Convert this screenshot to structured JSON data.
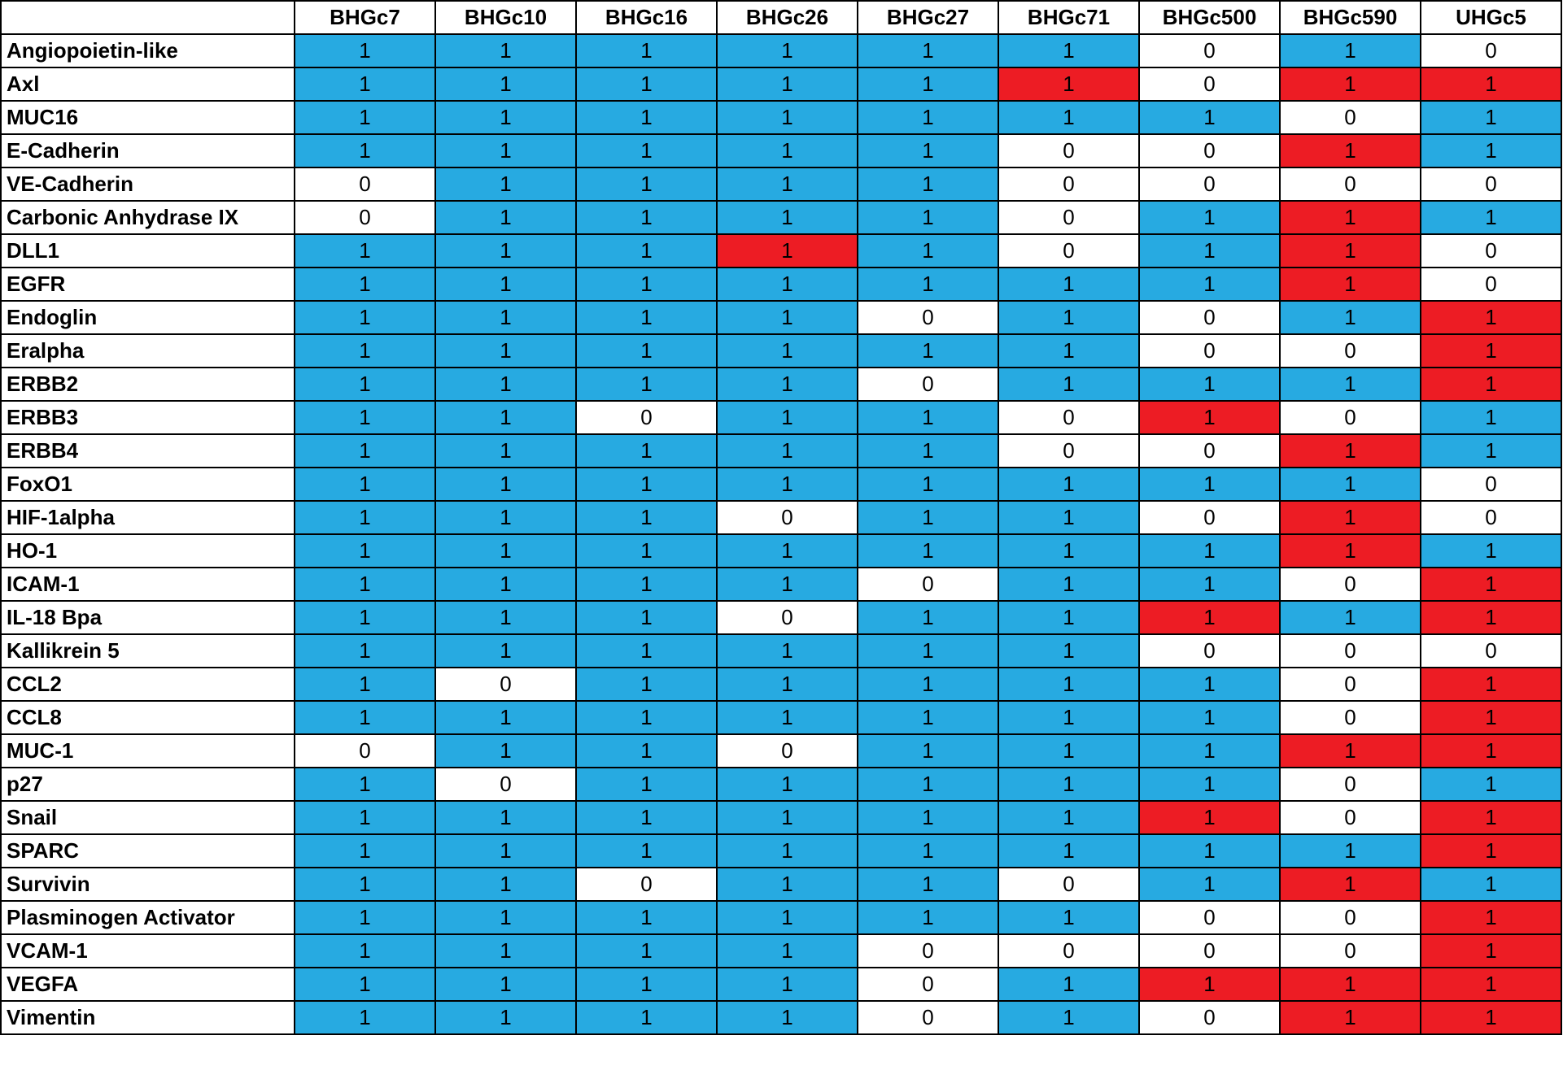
{
  "chart_data": {
    "type": "table",
    "columns": [
      "BHGc7",
      "BHGc10",
      "BHGc16",
      "BHGc26",
      "BHGc27",
      "BHGc71",
      "BHGc500",
      "BHGc590",
      "UHGc5"
    ],
    "colors": {
      "blue": "#27aae1",
      "red": "#ed1c24",
      "white": "#ffffff"
    },
    "rows": [
      {
        "label": "Angiopoietin-like",
        "values": [
          1,
          1,
          1,
          1,
          1,
          1,
          0,
          1,
          0
        ],
        "colors": [
          "blue",
          "blue",
          "blue",
          "blue",
          "blue",
          "blue",
          "white",
          "blue",
          "white"
        ]
      },
      {
        "label": "Axl",
        "values": [
          1,
          1,
          1,
          1,
          1,
          1,
          0,
          1,
          1
        ],
        "colors": [
          "blue",
          "blue",
          "blue",
          "blue",
          "blue",
          "red",
          "white",
          "red",
          "red"
        ]
      },
      {
        "label": "MUC16",
        "values": [
          1,
          1,
          1,
          1,
          1,
          1,
          1,
          0,
          1
        ],
        "colors": [
          "blue",
          "blue",
          "blue",
          "blue",
          "blue",
          "blue",
          "blue",
          "white",
          "blue"
        ]
      },
      {
        "label": "E-Cadherin",
        "values": [
          1,
          1,
          1,
          1,
          1,
          0,
          0,
          1,
          1
        ],
        "colors": [
          "blue",
          "blue",
          "blue",
          "blue",
          "blue",
          "white",
          "white",
          "red",
          "blue"
        ]
      },
      {
        "label": "VE-Cadherin",
        "values": [
          0,
          1,
          1,
          1,
          1,
          0,
          0,
          0,
          0
        ],
        "colors": [
          "white",
          "blue",
          "blue",
          "blue",
          "blue",
          "white",
          "white",
          "white",
          "white"
        ]
      },
      {
        "label": "Carbonic  Anhydrase IX",
        "values": [
          0,
          1,
          1,
          1,
          1,
          0,
          1,
          1,
          1
        ],
        "colors": [
          "white",
          "blue",
          "blue",
          "blue",
          "blue",
          "white",
          "blue",
          "red",
          "blue"
        ]
      },
      {
        "label": "DLL1",
        "values": [
          1,
          1,
          1,
          1,
          1,
          0,
          1,
          1,
          0
        ],
        "colors": [
          "blue",
          "blue",
          "blue",
          "red",
          "blue",
          "white",
          "blue",
          "red",
          "white"
        ]
      },
      {
        "label": "EGFR",
        "values": [
          1,
          1,
          1,
          1,
          1,
          1,
          1,
          1,
          0
        ],
        "colors": [
          "blue",
          "blue",
          "blue",
          "blue",
          "blue",
          "blue",
          "blue",
          "red",
          "white"
        ]
      },
      {
        "label": "Endoglin",
        "values": [
          1,
          1,
          1,
          1,
          0,
          1,
          0,
          1,
          1
        ],
        "colors": [
          "blue",
          "blue",
          "blue",
          "blue",
          "white",
          "blue",
          "white",
          "blue",
          "red"
        ]
      },
      {
        "label": "Eralpha",
        "values": [
          1,
          1,
          1,
          1,
          1,
          1,
          0,
          0,
          1
        ],
        "colors": [
          "blue",
          "blue",
          "blue",
          "blue",
          "blue",
          "blue",
          "white",
          "white",
          "red"
        ]
      },
      {
        "label": "ERBB2",
        "values": [
          1,
          1,
          1,
          1,
          0,
          1,
          1,
          1,
          1
        ],
        "colors": [
          "blue",
          "blue",
          "blue",
          "blue",
          "white",
          "blue",
          "blue",
          "blue",
          "red"
        ]
      },
      {
        "label": "ERBB3",
        "values": [
          1,
          1,
          0,
          1,
          1,
          0,
          1,
          0,
          1
        ],
        "colors": [
          "blue",
          "blue",
          "white",
          "blue",
          "blue",
          "white",
          "red",
          "white",
          "blue"
        ]
      },
      {
        "label": "ERBB4",
        "values": [
          1,
          1,
          1,
          1,
          1,
          0,
          0,
          1,
          1
        ],
        "colors": [
          "blue",
          "blue",
          "blue",
          "blue",
          "blue",
          "white",
          "white",
          "red",
          "blue"
        ]
      },
      {
        "label": "FoxO1",
        "values": [
          1,
          1,
          1,
          1,
          1,
          1,
          1,
          1,
          0
        ],
        "colors": [
          "blue",
          "blue",
          "blue",
          "blue",
          "blue",
          "blue",
          "blue",
          "blue",
          "white"
        ]
      },
      {
        "label": "HIF-1alpha",
        "values": [
          1,
          1,
          1,
          0,
          1,
          1,
          0,
          1,
          0
        ],
        "colors": [
          "blue",
          "blue",
          "blue",
          "white",
          "blue",
          "blue",
          "white",
          "red",
          "white"
        ]
      },
      {
        "label": "HO-1",
        "values": [
          1,
          1,
          1,
          1,
          1,
          1,
          1,
          1,
          1
        ],
        "colors": [
          "blue",
          "blue",
          "blue",
          "blue",
          "blue",
          "blue",
          "blue",
          "red",
          "blue"
        ]
      },
      {
        "label": "ICAM-1",
        "values": [
          1,
          1,
          1,
          1,
          0,
          1,
          1,
          0,
          1
        ],
        "colors": [
          "blue",
          "blue",
          "blue",
          "blue",
          "white",
          "blue",
          "blue",
          "white",
          "red"
        ]
      },
      {
        "label": "IL-18 Bpa",
        "values": [
          1,
          1,
          1,
          0,
          1,
          1,
          1,
          1,
          1
        ],
        "colors": [
          "blue",
          "blue",
          "blue",
          "white",
          "blue",
          "blue",
          "red",
          "blue",
          "red"
        ]
      },
      {
        "label": "Kallikrein 5",
        "values": [
          1,
          1,
          1,
          1,
          1,
          1,
          0,
          0,
          0
        ],
        "colors": [
          "blue",
          "blue",
          "blue",
          "blue",
          "blue",
          "blue",
          "white",
          "white",
          "white"
        ]
      },
      {
        "label": "CCL2",
        "values": [
          1,
          0,
          1,
          1,
          1,
          1,
          1,
          0,
          1
        ],
        "colors": [
          "blue",
          "white",
          "blue",
          "blue",
          "blue",
          "blue",
          "blue",
          "white",
          "red"
        ]
      },
      {
        "label": "CCL8",
        "values": [
          1,
          1,
          1,
          1,
          1,
          1,
          1,
          0,
          1
        ],
        "colors": [
          "blue",
          "blue",
          "blue",
          "blue",
          "blue",
          "blue",
          "blue",
          "white",
          "red"
        ]
      },
      {
        "label": "MUC-1",
        "values": [
          0,
          1,
          1,
          0,
          1,
          1,
          1,
          1,
          1
        ],
        "colors": [
          "white",
          "blue",
          "blue",
          "white",
          "blue",
          "blue",
          "blue",
          "red",
          "red"
        ]
      },
      {
        "label": "p27",
        "values": [
          1,
          0,
          1,
          1,
          1,
          1,
          1,
          0,
          1
        ],
        "colors": [
          "blue",
          "white",
          "blue",
          "blue",
          "blue",
          "blue",
          "blue",
          "white",
          "blue"
        ]
      },
      {
        "label": "Snail",
        "values": [
          1,
          1,
          1,
          1,
          1,
          1,
          1,
          0,
          1
        ],
        "colors": [
          "blue",
          "blue",
          "blue",
          "blue",
          "blue",
          "blue",
          "red",
          "white",
          "red"
        ]
      },
      {
        "label": "SPARC",
        "values": [
          1,
          1,
          1,
          1,
          1,
          1,
          1,
          1,
          1
        ],
        "colors": [
          "blue",
          "blue",
          "blue",
          "blue",
          "blue",
          "blue",
          "blue",
          "blue",
          "red"
        ]
      },
      {
        "label": "Survivin",
        "values": [
          1,
          1,
          0,
          1,
          1,
          0,
          1,
          1,
          1
        ],
        "colors": [
          "blue",
          "blue",
          "white",
          "blue",
          "blue",
          "white",
          "blue",
          "red",
          "blue"
        ]
      },
      {
        "label": "Plasminogen Activator",
        "values": [
          1,
          1,
          1,
          1,
          1,
          1,
          0,
          0,
          1
        ],
        "colors": [
          "blue",
          "blue",
          "blue",
          "blue",
          "blue",
          "blue",
          "white",
          "white",
          "red"
        ]
      },
      {
        "label": "VCAM-1",
        "values": [
          1,
          1,
          1,
          1,
          0,
          0,
          0,
          0,
          1
        ],
        "colors": [
          "blue",
          "blue",
          "blue",
          "blue",
          "white",
          "white",
          "white",
          "white",
          "red"
        ]
      },
      {
        "label": "VEGFA",
        "values": [
          1,
          1,
          1,
          1,
          0,
          1,
          1,
          1,
          1
        ],
        "colors": [
          "blue",
          "blue",
          "blue",
          "blue",
          "white",
          "blue",
          "red",
          "red",
          "red"
        ]
      },
      {
        "label": "Vimentin",
        "values": [
          1,
          1,
          1,
          1,
          0,
          1,
          0,
          1,
          1
        ],
        "colors": [
          "blue",
          "blue",
          "blue",
          "blue",
          "white",
          "blue",
          "white",
          "red",
          "red"
        ]
      }
    ]
  }
}
